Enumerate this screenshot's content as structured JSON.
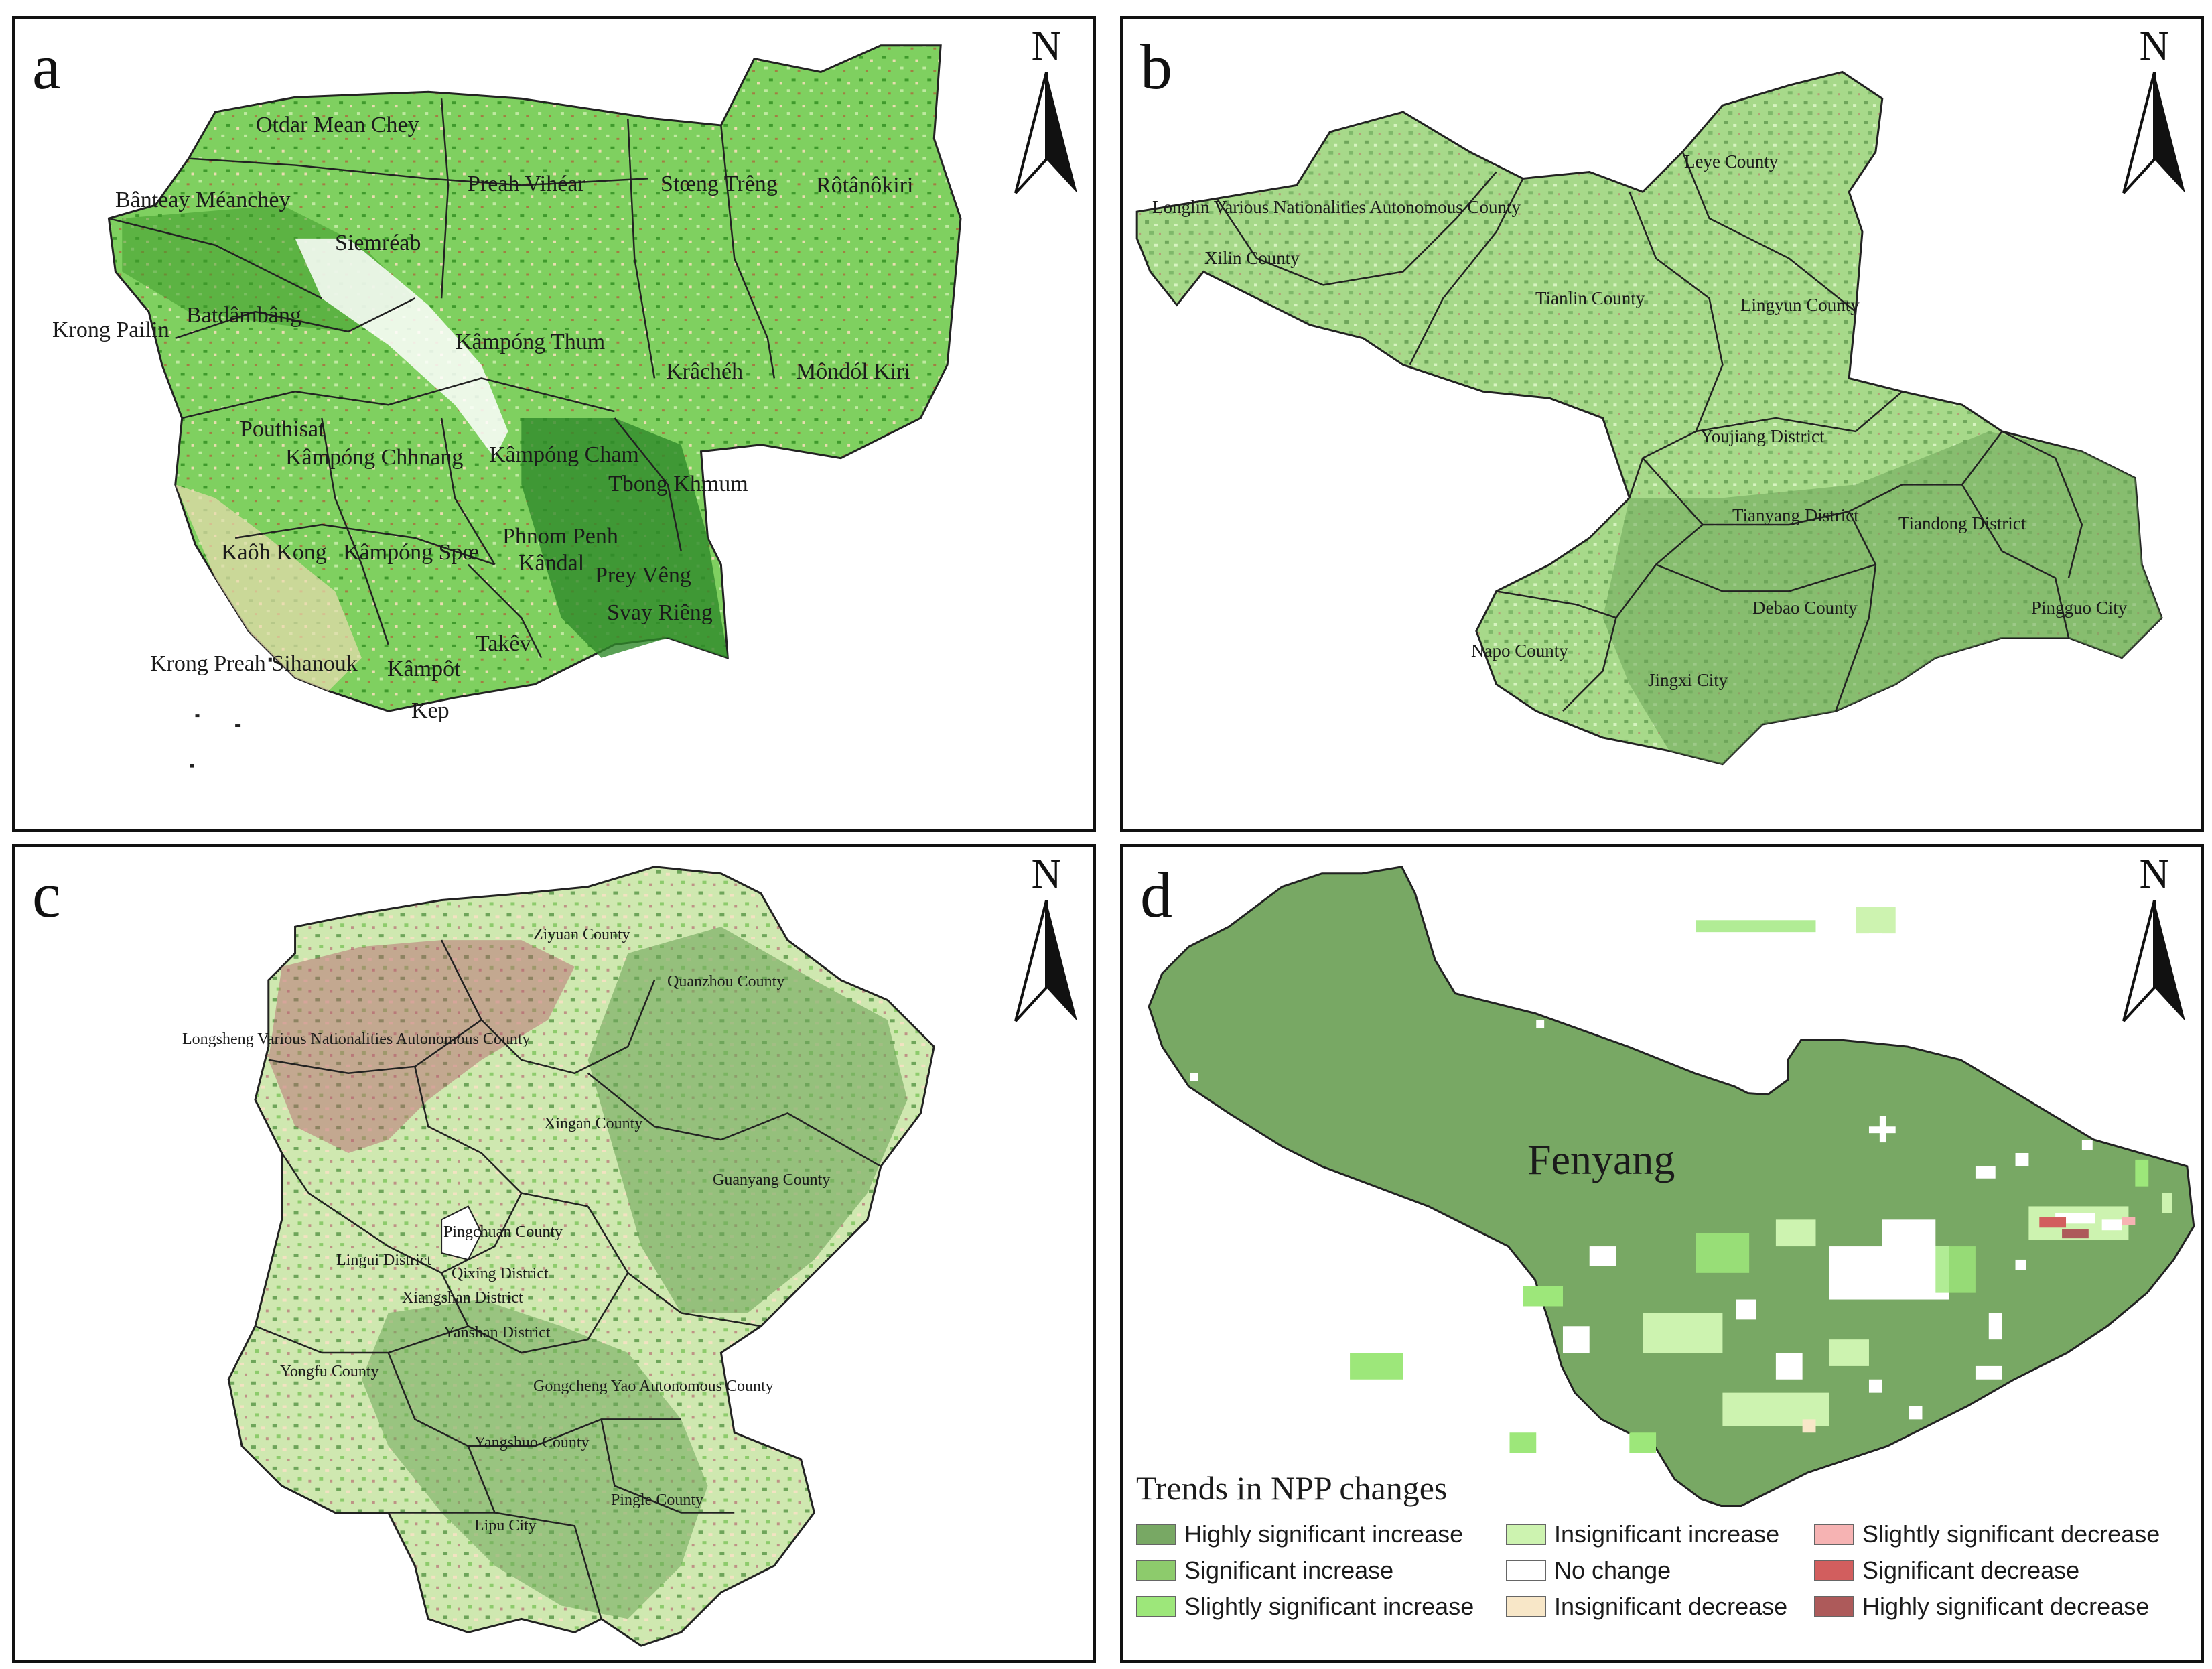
{
  "colors": {
    "highly_significant_increase": "#78a864",
    "significant_increase": "#8dcb6c",
    "slightly_significant_increase": "#9de77a",
    "insignificant_increase": "#cdf3b0",
    "no_change": "#ffffff",
    "insignificant_decrease": "#f8e7c8",
    "slightly_significant_decrease": "#f6b3b3",
    "significant_decrease": "#d25e5e",
    "highly_significant_decrease": "#ad5a5a",
    "boundary": "#222222",
    "dark_green": "#2f8a2a"
  },
  "north_arrow": {
    "label": "N",
    "icon": "north-arrow-icon"
  },
  "panels": [
    {
      "letter": "a",
      "places": [
        "Otdar Mean Chey",
        "Bânteay Méanchey",
        "Siemréab",
        "Preah Vihéar",
        "Stœng Trêng",
        "Rôtânôkiri",
        "Batdâmbâng",
        "Krong Pailin",
        "Kâmpóng Thum",
        "Krâchéh",
        "Môndól Kiri",
        "Pouthisat",
        "Kâmpóng Chhnang",
        "Kâmpóng Cham",
        "Tbong Khmum",
        "Kaôh Kong",
        "Kâmpóng Spœ",
        "Phnom Penh",
        "Kândal",
        "Prey Vêng",
        "Svay Riêng",
        "Krong Preah Sihanouk",
        "Takêv",
        "Kâmpôt",
        "Kep"
      ]
    },
    {
      "letter": "b",
      "places": [
        "Leye County",
        "Longlin Various Nationalities Autonomous County",
        "Xilin County",
        "Tianlin County",
        "Lingyun County",
        "Youjiang District",
        "Tianyang District",
        "Tiandong District",
        "Debao County",
        "Pingguo City",
        "Napo County",
        "Jingxi City"
      ]
    },
    {
      "letter": "c",
      "places": [
        "Ziyuan County",
        "Quanzhou County",
        "Longsheng Various Nationalities Autonomous County",
        "Xingan County",
        "Guanyang County",
        "Pingchuan County",
        "Lingui District",
        "Qixing District",
        "Xiangshan District",
        "Yanshan District",
        "Yongfu County",
        "Gongcheng Yao Autonomous County",
        "Yangshuo County",
        "Lipu City",
        "Pingle County"
      ]
    },
    {
      "letter": "d",
      "places": [
        "Fenyang"
      ]
    }
  ],
  "legend": {
    "title": "Trends in NPP changes",
    "items": [
      {
        "label": "Highly significant increase",
        "color": "#78a864"
      },
      {
        "label": "Significant increase",
        "color": "#8dcb6c"
      },
      {
        "label": "Slightly significant increase",
        "color": "#9de77a"
      },
      {
        "label": "Insignificant increase",
        "color": "#cdf3b0"
      },
      {
        "label": "No change",
        "color": "#ffffff"
      },
      {
        "label": "Insignificant decrease",
        "color": "#f8e7c8"
      },
      {
        "label": "Slightly significant decrease",
        "color": "#f6b3b3"
      },
      {
        "label": "Significant decrease",
        "color": "#d25e5e"
      },
      {
        "label": "Highly significant decrease",
        "color": "#ad5a5a"
      }
    ]
  }
}
